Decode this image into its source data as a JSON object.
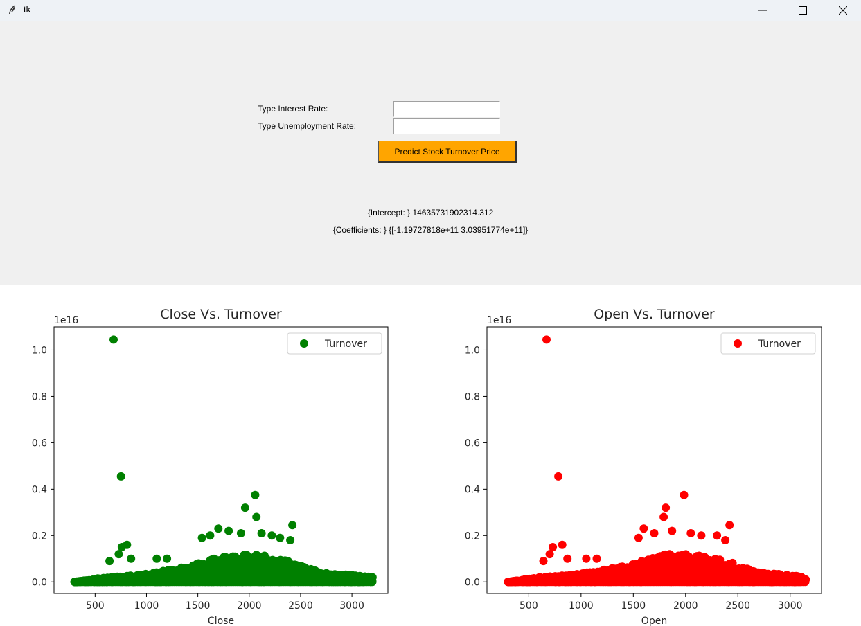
{
  "window": {
    "title": "tk",
    "icon": "feather-icon",
    "controls": [
      "minimize-icon",
      "maximize-icon",
      "close-icon"
    ]
  },
  "form": {
    "interest_label": "Type Interest Rate:",
    "unemployment_label": "Type Unemployment Rate:",
    "interest_value": "",
    "unemployment_value": "",
    "predict_button": "Predict Stock Turnover Price",
    "button_color": "#ffa500",
    "intercept_text": "{Intercept: } 14635731902314.312",
    "coefficients_text": "{Coefficients: } {[-1.19727818e+11  3.03951774e+11]}"
  },
  "chart_data": [
    {
      "type": "scatter",
      "title": "Close Vs. Turnover",
      "xlabel": "Close",
      "ylabel": "",
      "y_scale_label": "1e16",
      "xlim": [
        100,
        3350
      ],
      "ylim": [
        -0.05,
        1.1
      ],
      "xticks": [
        500,
        1000,
        1500,
        2000,
        2500,
        3000
      ],
      "yticks": [
        0.0,
        0.2,
        0.4,
        0.6,
        0.8,
        1.0
      ],
      "ytick_labels": [
        "0.0",
        "0.2",
        "0.4",
        "0.6",
        "0.8",
        "1.0"
      ],
      "legend": "Turnover",
      "legend_position": "top-right",
      "color": "#008000",
      "outliers": [
        [
          680,
          1.045
        ],
        [
          752,
          0.455
        ],
        [
          2058,
          0.375
        ],
        [
          1960,
          0.32
        ],
        [
          2070,
          0.28
        ],
        [
          2420,
          0.245
        ],
        [
          1700,
          0.23
        ],
        [
          1800,
          0.22
        ],
        [
          2220,
          0.2
        ],
        [
          810,
          0.16
        ],
        [
          760,
          0.15
        ],
        [
          1540,
          0.19
        ],
        [
          1620,
          0.2
        ],
        [
          1920,
          0.21
        ],
        [
          2120,
          0.21
        ],
        [
          2300,
          0.19
        ],
        [
          2400,
          0.18
        ],
        [
          730,
          0.12
        ],
        [
          850,
          0.1
        ],
        [
          640,
          0.09
        ],
        [
          1200,
          0.1
        ],
        [
          1100,
          0.1
        ]
      ],
      "mass": [
        [
          300,
          0.0
        ],
        [
          600,
          0.02
        ],
        [
          900,
          0.03
        ],
        [
          1200,
          0.05
        ],
        [
          1500,
          0.08
        ],
        [
          1800,
          0.12
        ],
        [
          2100,
          0.12
        ],
        [
          2400,
          0.09
        ],
        [
          2700,
          0.04
        ],
        [
          3000,
          0.03
        ],
        [
          3200,
          0.02
        ]
      ]
    },
    {
      "type": "scatter",
      "title": "Open Vs. Turnover",
      "xlabel": "Open",
      "ylabel": "",
      "y_scale_label": "1e16",
      "xlim": [
        100,
        3300
      ],
      "ylim": [
        -0.05,
        1.1
      ],
      "xticks": [
        500,
        1000,
        1500,
        2000,
        2500,
        3000
      ],
      "yticks": [
        0.0,
        0.2,
        0.4,
        0.6,
        0.8,
        1.0
      ],
      "ytick_labels": [
        "0.0",
        "0.2",
        "0.4",
        "0.6",
        "0.8",
        "1.0"
      ],
      "legend": "Turnover",
      "legend_position": "top-right",
      "color": "#ff0000",
      "outliers": [
        [
          670,
          1.045
        ],
        [
          783,
          0.455
        ],
        [
          1985,
          0.375
        ],
        [
          1810,
          0.32
        ],
        [
          1790,
          0.28
        ],
        [
          2420,
          0.245
        ],
        [
          1600,
          0.23
        ],
        [
          1700,
          0.21
        ],
        [
          2150,
          0.2
        ],
        [
          820,
          0.16
        ],
        [
          730,
          0.15
        ],
        [
          1550,
          0.19
        ],
        [
          1870,
          0.22
        ],
        [
          2050,
          0.21
        ],
        [
          2300,
          0.2
        ],
        [
          2380,
          0.18
        ],
        [
          700,
          0.12
        ],
        [
          870,
          0.1
        ],
        [
          640,
          0.09
        ],
        [
          1150,
          0.1
        ],
        [
          1050,
          0.1
        ]
      ],
      "mass": [
        [
          300,
          0.0
        ],
        [
          600,
          0.02
        ],
        [
          900,
          0.03
        ],
        [
          1200,
          0.05
        ],
        [
          1500,
          0.08
        ],
        [
          1800,
          0.12
        ],
        [
          2100,
          0.12
        ],
        [
          2400,
          0.09
        ],
        [
          2700,
          0.04
        ],
        [
          3000,
          0.03
        ],
        [
          3150,
          0.02
        ]
      ]
    }
  ]
}
